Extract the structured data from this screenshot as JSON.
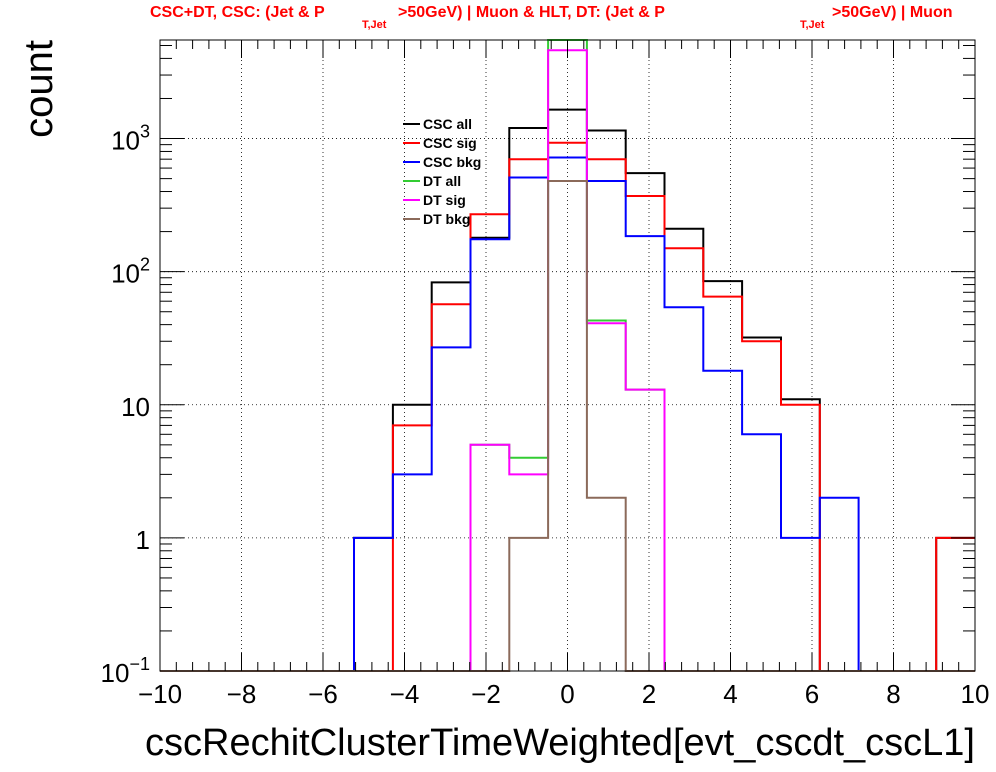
{
  "title": {
    "part1": "CSC+DT, CSC: (Jet & P",
    "sub1": "T,Jet",
    "part2": ">50GeV) | Muon & HLT, DT: (Jet & P",
    "sub2": "T,Jet",
    "part3": ">50GeV) | Muon"
  },
  "chart_data": {
    "type": "step-histogram",
    "xlabel": "cscRechitClusterTimeWeighted[evt_cscdt_cscL1]",
    "ylabel": "count",
    "xlim": [
      -10,
      10
    ],
    "ylim": [
      0.1,
      5500
    ],
    "yscale": "log",
    "grid": true,
    "legend_position": "upper-left-center",
    "x_ticks": [
      "−10",
      "−8",
      "−6",
      "−4",
      "−2",
      "0",
      "2",
      "4",
      "6",
      "8",
      "10"
    ],
    "y_ticks": [
      {
        "value": 0.1,
        "base": "10",
        "exp": "−1"
      },
      {
        "value": 1,
        "base": "1",
        "exp": ""
      },
      {
        "value": 10,
        "base": "10",
        "exp": ""
      },
      {
        "value": 100,
        "base": "10",
        "exp": "2"
      },
      {
        "value": 1000,
        "base": "10",
        "exp": "3"
      }
    ],
    "bin_edges": [
      -10,
      -9.0476,
      -8.0952,
      -7.1429,
      -6.1905,
      -5.2381,
      -4.2857,
      -3.3333,
      -2.381,
      -1.4286,
      -0.4762,
      0.4762,
      1.4286,
      2.381,
      3.3333,
      4.2857,
      5.2381,
      6.1905,
      7.1429,
      8.0952,
      9.0476,
      10
    ],
    "series": [
      {
        "name": "CSC all",
        "color": "#000000",
        "values": [
          0,
          0,
          0,
          0,
          0,
          1,
          10,
          83,
          180,
          1200,
          1650,
          1150,
          550,
          210,
          85,
          32,
          11,
          0,
          0,
          0,
          1
        ]
      },
      {
        "name": "CSC sig",
        "color": "#ff0000",
        "values": [
          0,
          0,
          0,
          0,
          0,
          0,
          7,
          57,
          270,
          700,
          930,
          700,
          370,
          150,
          65,
          30,
          10,
          0,
          0,
          0,
          1
        ]
      },
      {
        "name": "CSC bkg",
        "color": "#0000ff",
        "values": [
          0,
          0,
          0,
          0,
          0,
          1,
          3,
          27,
          175,
          510,
          720,
          480,
          185,
          54,
          18,
          6,
          1,
          2,
          0,
          0,
          0
        ]
      },
      {
        "name": "DT all",
        "color": "#33cc33",
        "values": [
          0,
          0,
          0,
          0,
          0,
          0,
          0,
          0,
          5,
          4,
          5500,
          43,
          13,
          0,
          0,
          0,
          0,
          0,
          0,
          0,
          0
        ]
      },
      {
        "name": "DT sig",
        "color": "#ff00ff",
        "values": [
          0,
          0,
          0,
          0,
          0,
          0,
          0,
          0,
          5,
          3,
          4600,
          41,
          13,
          0,
          0,
          0,
          0,
          0,
          0,
          0,
          0
        ]
      },
      {
        "name": "DT bkg",
        "color": "#8b6a5a",
        "values": [
          0,
          0,
          0,
          0,
          0,
          0,
          0,
          0,
          0,
          1,
          480,
          2,
          0,
          0,
          0,
          0,
          0,
          0,
          0,
          0,
          0
        ]
      }
    ]
  }
}
